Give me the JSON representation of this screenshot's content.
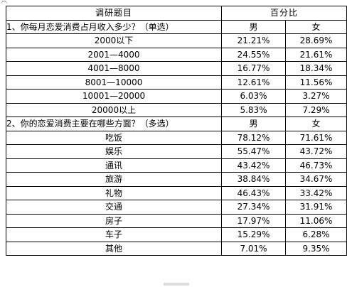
{
  "corner_tag": "↗↖",
  "table": {
    "header": {
      "topic": "调研题目",
      "percent": "百分比"
    },
    "sections": [
      {
        "question": "1、你每月恋爱消费占月收入多少？（单选）",
        "col_male": "男",
        "col_female": "女",
        "rows": [
          {
            "label": "2000以下",
            "male": "21.21%",
            "female": "28.69%"
          },
          {
            "label": "2001—4000",
            "male": "24.55%",
            "female": "21.61%"
          },
          {
            "label": "4001—8000",
            "male": "16.77%",
            "female": "18.34%"
          },
          {
            "label": "8001—10000",
            "male": "12.61%",
            "female": "11.56%"
          },
          {
            "label": "10001—20000",
            "male": "6.03%",
            "female": "3.27%"
          },
          {
            "label": "20000以上",
            "male": "5.83%",
            "female": "7.29%"
          }
        ]
      },
      {
        "question": "2、你的恋爱消费主要在哪些方面？（多选）",
        "col_male": "男",
        "col_female": "女",
        "rows": [
          {
            "label": "吃饭",
            "male": "78.12%",
            "female": "71.61%"
          },
          {
            "label": "娱乐",
            "male": "55.47%",
            "female": "43.72%"
          },
          {
            "label": "通讯",
            "male": "43.42%",
            "female": "46.73%"
          },
          {
            "label": "旅游",
            "male": "38.84%",
            "female": "34.67%"
          },
          {
            "label": "礼物",
            "male": "46.43%",
            "female": "33.42%"
          },
          {
            "label": "交通",
            "male": "27.34%",
            "female": "31.91%"
          },
          {
            "label": "房子",
            "male": "17.97%",
            "female": "11.06%"
          },
          {
            "label": "车子",
            "male": "15.29%",
            "female": "6.28%"
          },
          {
            "label": "其他",
            "male": "7.01%",
            "female": "9.35%"
          }
        ]
      }
    ]
  }
}
